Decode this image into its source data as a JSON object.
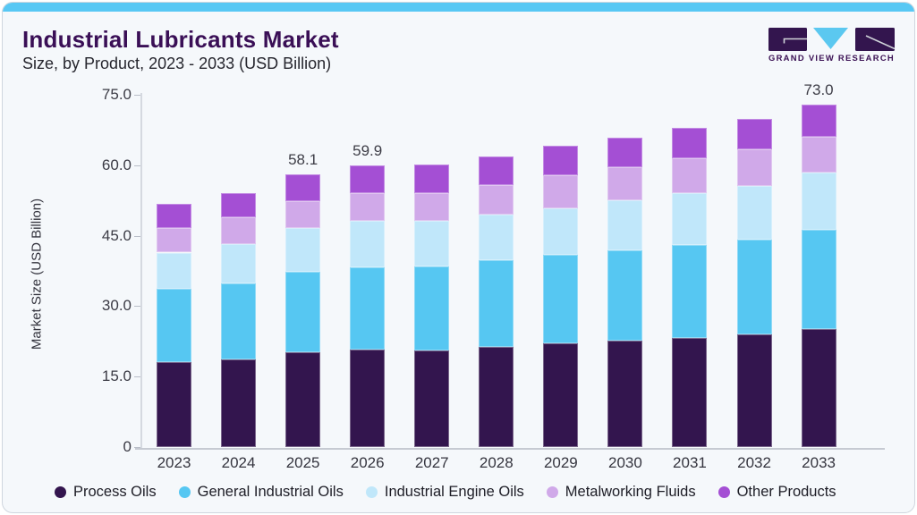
{
  "header": {
    "title": "Industrial Lubricants Market",
    "subtitle": "Size, by Product, 2023 - 2033 (USD Billion)"
  },
  "logo": {
    "text": "GRAND VIEW RESEARCH"
  },
  "theme": {
    "accent_bar": "#58c8f4",
    "title_color": "#3a0f56",
    "card_bg": "#f5f8fb",
    "axis_text": "#3b3b45"
  },
  "chart_data": {
    "type": "bar",
    "stacked": true,
    "title": "Industrial Lubricants Market Size, by Product, 2023 - 2033 (USD Billion)",
    "categories": [
      "2023",
      "2024",
      "2025",
      "2026",
      "2027",
      "2028",
      "2029",
      "2030",
      "2031",
      "2032",
      "2033"
    ],
    "series": [
      {
        "name": "Process Oils",
        "color": "#33154e",
        "values": [
          18.1,
          18.7,
          20.2,
          20.7,
          20.6,
          21.4,
          22.0,
          22.7,
          23.3,
          23.9,
          25.2
        ]
      },
      {
        "name": "General Industrial Oils",
        "color": "#56c7f2",
        "values": [
          15.5,
          16.2,
          17.2,
          17.6,
          17.8,
          18.4,
          18.9,
          19.2,
          19.8,
          20.2,
          21.0
        ]
      },
      {
        "name": "Industrial Engine Oils",
        "color": "#c0e7fa",
        "values": [
          7.8,
          8.3,
          9.2,
          9.8,
          9.7,
          9.7,
          10.0,
          10.6,
          11.0,
          11.5,
          12.3
        ]
      },
      {
        "name": "Metalworking Fluids",
        "color": "#d0a9e9",
        "values": [
          5.3,
          5.7,
          5.8,
          5.9,
          6.0,
          6.3,
          7.0,
          7.1,
          7.4,
          7.7,
          7.6
        ]
      },
      {
        "name": "Other Products",
        "color": "#a44fd4",
        "values": [
          5.0,
          5.2,
          5.7,
          5.9,
          6.1,
          6.1,
          6.2,
          6.2,
          6.4,
          6.5,
          6.9
        ]
      }
    ],
    "totals": [
      51.7,
      54.1,
      58.1,
      59.9,
      60.2,
      61.9,
      64.1,
      65.8,
      67.9,
      69.8,
      73.0
    ],
    "value_labels": {
      "2025": "58.1",
      "2026": "59.9",
      "2033": "73.0"
    },
    "ylabel": "Market Size (USD Billion)",
    "ylim": [
      0,
      75
    ],
    "yticks": [
      {
        "value": 0,
        "label": "0"
      },
      {
        "value": 15,
        "label": "15.0"
      },
      {
        "value": 30,
        "label": "30.0"
      },
      {
        "value": 45,
        "label": "45.0"
      },
      {
        "value": 60,
        "label": "60.0"
      },
      {
        "value": 75,
        "label": "75.0"
      }
    ],
    "grid": false,
    "legend_position": "bottom"
  }
}
